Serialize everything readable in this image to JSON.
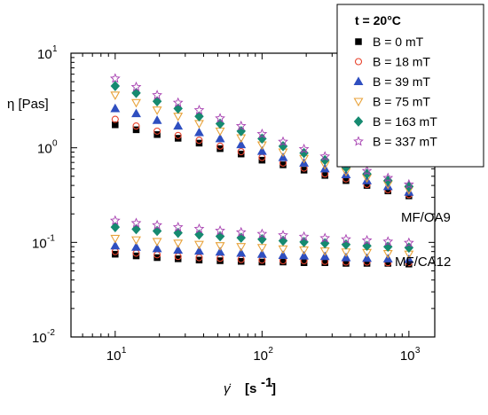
{
  "chart_data": {
    "type": "scatter",
    "x_scale": "log",
    "y_scale": "log",
    "xlim": [
      5,
      1500
    ],
    "ylim": [
      0.01,
      10
    ],
    "x_ticks": [
      {
        "value": 10,
        "base": "10",
        "exp": "1"
      },
      {
        "value": 100,
        "base": "10",
        "exp": "2"
      },
      {
        "value": 1000,
        "base": "10",
        "exp": "3"
      }
    ],
    "y_ticks": [
      {
        "value": 0.01,
        "base": "10",
        "exp": "-2"
      },
      {
        "value": 0.1,
        "base": "10",
        "exp": "-1"
      },
      {
        "value": 1,
        "base": "10",
        "exp": "0"
      },
      {
        "value": 10,
        "base": "10",
        "exp": "1"
      }
    ],
    "ylabel": "η  [Pas]",
    "xlabel": {
      "symbol": "γ̇",
      "unit_open": "[s",
      "unit_exp": "-1",
      "unit_close": "]"
    },
    "legend": {
      "title": "t = 20°C",
      "entries": [
        {
          "label": "B = 0 mT",
          "marker": "square",
          "color": "#000000",
          "filled": true
        },
        {
          "label": "B = 18 mT",
          "marker": "circle",
          "color": "#e8442e",
          "filled": false
        },
        {
          "label": "B = 39 mT",
          "marker": "triangle-up",
          "color": "#2f4fc0",
          "filled": true
        },
        {
          "label": "B = 75 mT",
          "marker": "triangle-down",
          "color": "#e8a23a",
          "filled": false
        },
        {
          "label": "B = 163 mT",
          "marker": "diamond",
          "color": "#168a70",
          "filled": true
        },
        {
          "label": "B = 337 mT",
          "marker": "star",
          "color": "#a63fb0",
          "filled": false
        }
      ]
    },
    "annotations": [
      "MF/OA9",
      "MF/CA12"
    ],
    "x": [
      10,
      13.9,
      19.3,
      26.8,
      37.3,
      51.8,
      72,
      100,
      139,
      193,
      268,
      373,
      518,
      720,
      1000
    ],
    "groups": [
      {
        "name": "MF/OA9",
        "series": [
          {
            "name": "B = 0 mT",
            "values": [
              1.75,
              1.55,
              1.38,
              1.26,
              1.12,
              0.98,
              0.86,
              0.74,
              0.66,
              0.58,
              0.51,
              0.45,
              0.4,
              0.35,
              0.31
            ]
          },
          {
            "name": "B = 18 mT",
            "values": [
              2.0,
              1.7,
              1.5,
              1.35,
              1.2,
              1.04,
              0.91,
              0.79,
              0.69,
              0.61,
              0.53,
              0.47,
              0.41,
              0.36,
              0.32
            ]
          },
          {
            "name": "B = 39 mT",
            "values": [
              2.6,
              2.3,
              1.95,
              1.7,
              1.45,
              1.25,
              1.08,
              0.92,
              0.79,
              0.69,
              0.6,
              0.52,
              0.45,
              0.39,
              0.34
            ]
          },
          {
            "name": "B = 75 mT",
            "values": [
              3.6,
              3.0,
              2.5,
              2.15,
              1.8,
              1.5,
              1.27,
              1.07,
              0.9,
              0.77,
              0.66,
              0.56,
              0.48,
              0.41,
              0.36
            ]
          },
          {
            "name": "B = 163 mT",
            "values": [
              4.5,
              3.8,
              3.1,
              2.6,
              2.15,
              1.8,
              1.5,
              1.25,
              1.04,
              0.88,
              0.74,
              0.62,
              0.53,
              0.45,
              0.39
            ]
          },
          {
            "name": "B = 337 mT",
            "values": [
              5.4,
              4.4,
              3.6,
              3.0,
              2.5,
              2.05,
              1.7,
              1.4,
              1.16,
              0.97,
              0.81,
              0.68,
              0.57,
              0.48,
              0.41
            ]
          }
        ]
      },
      {
        "name": "MF/CA12",
        "series": [
          {
            "name": "B = 0 mT",
            "values": [
              0.075,
              0.072,
              0.069,
              0.067,
              0.065,
              0.064,
              0.063,
              0.062,
              0.062,
              0.061,
              0.061,
              0.06,
              0.06,
              0.06,
              0.059
            ]
          },
          {
            "name": "B = 18 mT",
            "values": [
              0.08,
              0.077,
              0.074,
              0.071,
              0.069,
              0.068,
              0.066,
              0.065,
              0.064,
              0.064,
              0.063,
              0.062,
              0.062,
              0.061,
              0.061
            ]
          },
          {
            "name": "B = 39 mT",
            "values": [
              0.092,
              0.089,
              0.086,
              0.083,
              0.081,
              0.079,
              0.077,
              0.075,
              0.073,
              0.072,
              0.071,
              0.069,
              0.068,
              0.067,
              0.066
            ]
          },
          {
            "name": "B = 75 mT",
            "values": [
              0.11,
              0.106,
              0.102,
              0.098,
              0.095,
              0.092,
              0.09,
              0.088,
              0.085,
              0.083,
              0.081,
              0.079,
              0.078,
              0.076,
              0.075
            ]
          },
          {
            "name": "B = 163 mT",
            "values": [
              0.145,
              0.138,
              0.132,
              0.126,
              0.121,
              0.116,
              0.112,
              0.108,
              0.104,
              0.101,
              0.098,
              0.095,
              0.092,
              0.09,
              0.088
            ]
          },
          {
            "name": "B = 337 mT",
            "values": [
              0.17,
              0.16,
              0.152,
              0.145,
              0.139,
              0.133,
              0.128,
              0.123,
              0.119,
              0.115,
              0.111,
              0.108,
              0.105,
              0.102,
              0.099
            ]
          }
        ]
      }
    ]
  }
}
